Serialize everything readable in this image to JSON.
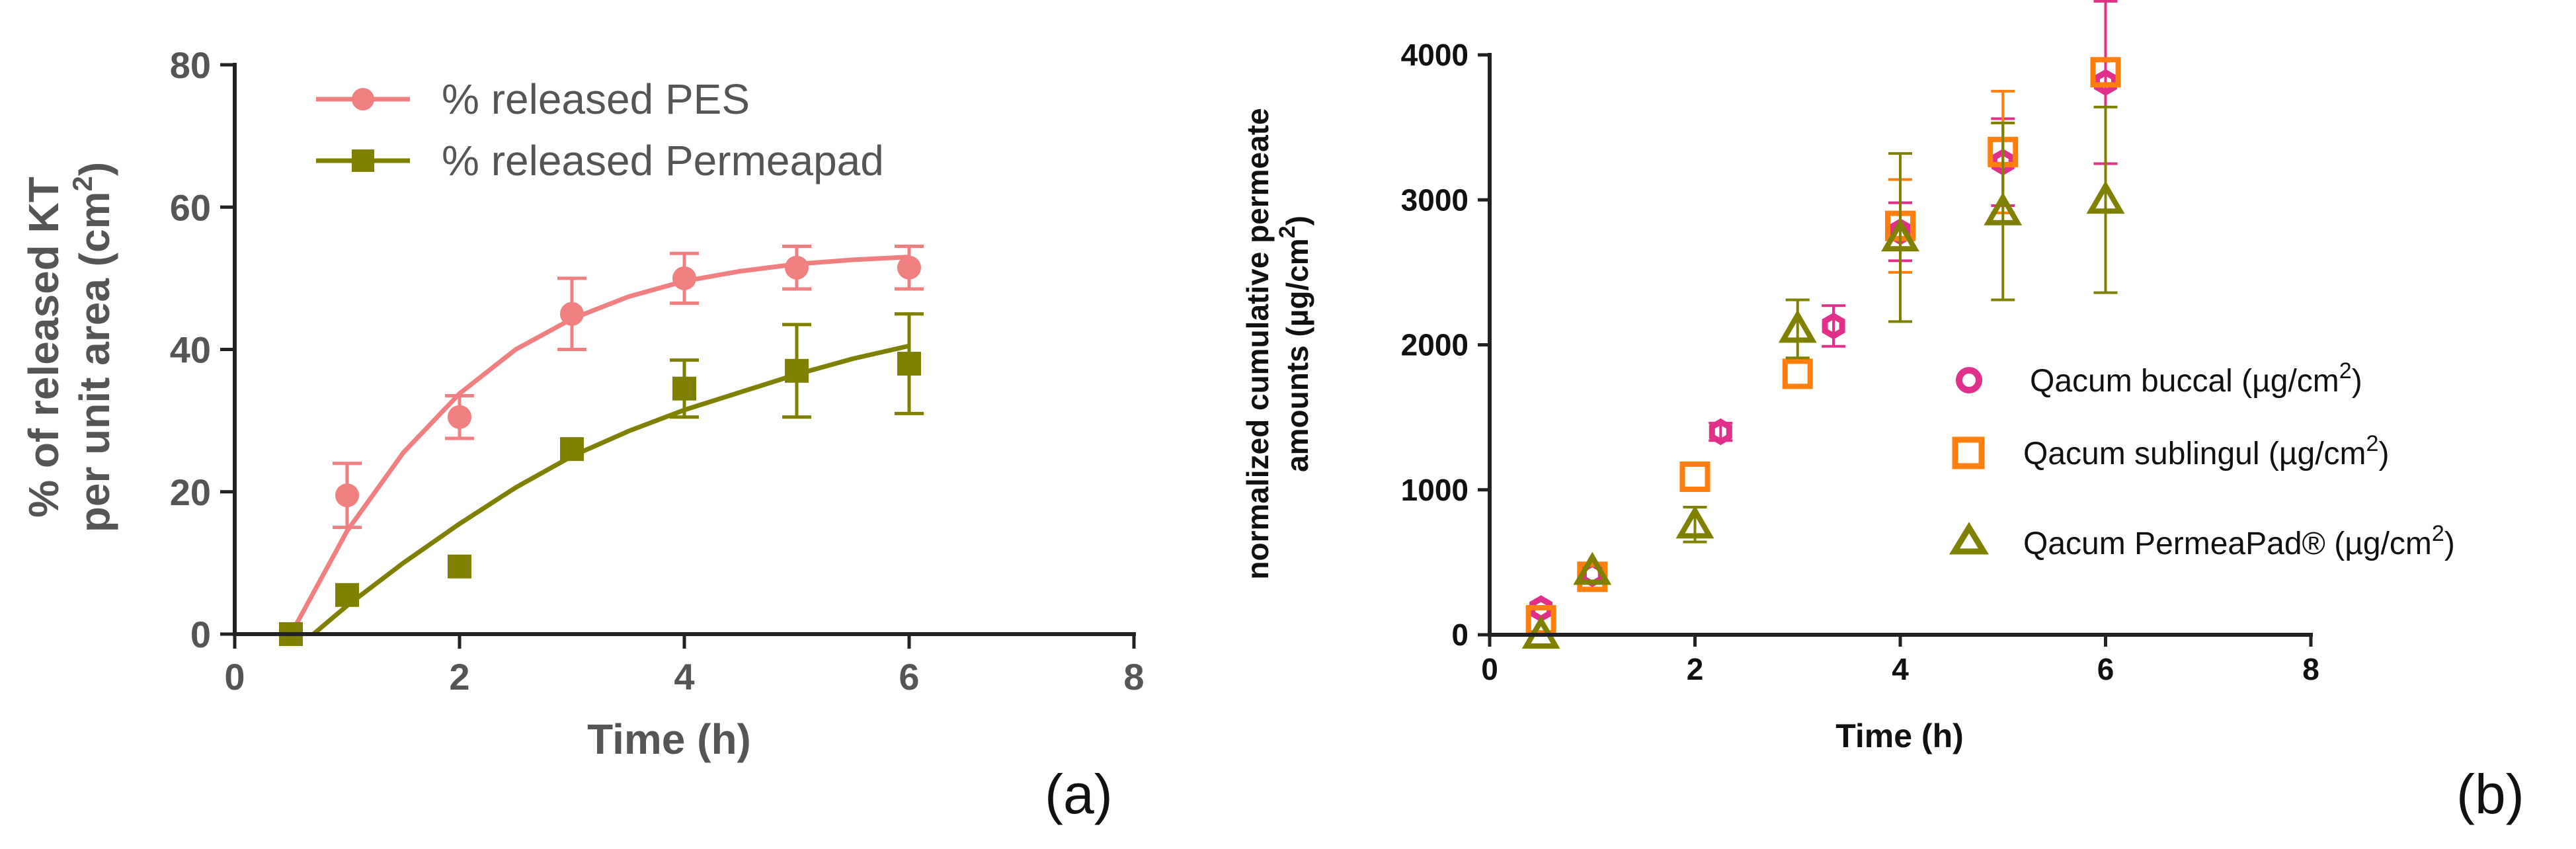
{
  "chart_data": [
    {
      "type": "line",
      "panel_label": "(a)",
      "xlabel": "Time (h)",
      "ylabel_line1": "% of released KT",
      "ylabel_line2": "per unit area (cm",
      "ylabel_sup": "2",
      "ylabel_close": ")",
      "xlim": [
        0,
        8
      ],
      "ylim": [
        0,
        80
      ],
      "xticks": [
        0,
        2,
        4,
        6,
        8
      ],
      "yticks": [
        0,
        20,
        40,
        60,
        80
      ],
      "grid": false,
      "legend_position": "top-left",
      "series": [
        {
          "name": "% released PES",
          "color": "#f08080",
          "marker": "circle",
          "x": [
            0.5,
            1,
            2,
            3,
            4,
            5,
            6
          ],
          "y": [
            0,
            19.5,
            30.5,
            45,
            50,
            51.5,
            51.5
          ],
          "err": [
            0,
            4.5,
            3,
            5,
            3.5,
            3,
            3
          ],
          "fit_x": [
            0.5,
            1,
            1.5,
            2,
            2.5,
            3,
            3.5,
            4,
            4.5,
            5,
            5.5,
            6
          ],
          "fit_y": [
            0,
            14.5,
            25.5,
            33.8,
            40.0,
            44.3,
            47.4,
            49.6,
            51.0,
            52.0,
            52.6,
            53.0
          ]
        },
        {
          "name": "% released Permeapad",
          "color": "#7f7f00",
          "marker": "square",
          "x": [
            0.5,
            1,
            2,
            3,
            4,
            5,
            6
          ],
          "y": [
            0,
            5.5,
            9.5,
            26,
            34.5,
            37,
            38
          ],
          "err": [
            0,
            0,
            0,
            0,
            4,
            6.5,
            7
          ],
          "fit_x": [
            0.7,
            1,
            1.5,
            2,
            2.5,
            3,
            3.5,
            4,
            4.5,
            5,
            5.5,
            6
          ],
          "fit_y": [
            0,
            4.0,
            10.0,
            15.5,
            20.6,
            25.0,
            28.5,
            31.5,
            34.0,
            36.5,
            38.7,
            40.5
          ]
        }
      ]
    },
    {
      "type": "scatter",
      "panel_label": "(b)",
      "xlabel": "Time (h)",
      "ylabel_line1": "normalized cumulative permeate",
      "ylabel_line2": "amounts (µg/cm",
      "ylabel_sup": "2",
      "ylabel_close": ")",
      "xlim": [
        0,
        8
      ],
      "ylim": [
        0,
        4000
      ],
      "xticks": [
        0,
        2,
        4,
        6,
        8
      ],
      "yticks": [
        0,
        1000,
        2000,
        3000,
        4000
      ],
      "grid": false,
      "legend_position": "center-right",
      "series": [
        {
          "name": "Qacum buccal (µg/cm",
          "name_sup": "2",
          "name_close": ")",
          "color": "#e0308a",
          "marker": "open-hexagon",
          "x": [
            0.5,
            1,
            2.25,
            3.35,
            4,
            5,
            6
          ],
          "y": [
            180,
            420,
            1400,
            2130,
            2780,
            3260,
            3810
          ],
          "err": [
            0,
            0,
            60,
            140,
            200,
            300,
            560
          ]
        },
        {
          "name": "Qacum sublingul (µg/cm",
          "name_sup": "2",
          "name_close": ")",
          "color": "#ff7f0e",
          "marker": "open-square",
          "x": [
            0.5,
            1,
            2,
            3,
            4,
            5,
            6
          ],
          "y": [
            100,
            400,
            1090,
            1800,
            2820,
            3330,
            3880
          ],
          "err": [
            0,
            0,
            0,
            0,
            320,
            420,
            0
          ]
        },
        {
          "name": "Qacum PermeaPad® (µg/cm",
          "name_sup": "2",
          "name_close": ")",
          "color": "#808000",
          "marker": "open-triangle",
          "x": [
            0.5,
            1,
            2,
            3,
            4,
            5,
            6
          ],
          "y": [
            0,
            440,
            760,
            2110,
            2740,
            2920,
            3000
          ],
          "err": [
            0,
            0,
            120,
            200,
            580,
            610,
            640
          ]
        }
      ]
    }
  ]
}
